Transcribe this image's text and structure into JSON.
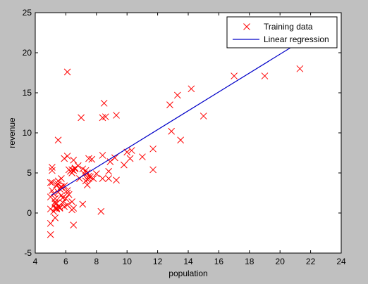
{
  "chart_data": {
    "type": "scatter",
    "title": "",
    "xlabel": "population",
    "ylabel": "revenue",
    "xlim": [
      4,
      24
    ],
    "ylim": [
      -5,
      25
    ],
    "xticks": [
      4,
      6,
      8,
      10,
      12,
      14,
      16,
      18,
      20,
      22,
      24
    ],
    "yticks": [
      -5,
      0,
      5,
      10,
      15,
      20,
      25
    ],
    "grid": false,
    "legend_position": "top-right",
    "series": [
      {
        "name": "Training data",
        "kind": "scatter",
        "marker": "x",
        "color": "#ff0000",
        "points": [
          [
            6.1,
            17.6
          ],
          [
            5.5,
            9.1
          ],
          [
            8.5,
            13.7
          ],
          [
            7.0,
            11.9
          ],
          [
            5.9,
            6.8
          ],
          [
            8.4,
            11.9
          ],
          [
            7.5,
            4.3
          ],
          [
            8.6,
            12.0
          ],
          [
            6.5,
            6.6
          ],
          [
            5.1,
            3.8
          ],
          [
            5.7,
            3.3
          ],
          [
            14.2,
            15.5
          ],
          [
            5.7,
            3.2
          ],
          [
            8.4,
            7.2
          ],
          [
            5.6,
            0.7
          ],
          [
            5.4,
            3.5
          ],
          [
            6.4,
            5.4
          ],
          [
            5.1,
            5.7
          ],
          [
            5.0,
            3.8
          ],
          [
            6.4,
            0.4
          ],
          [
            5.6,
            3.0
          ],
          [
            5.7,
            4.3
          ],
          [
            5.5,
            4.0
          ],
          [
            5.1,
            2.8
          ],
          [
            5.4,
            1.2
          ],
          [
            6.8,
            5.9
          ],
          [
            9.3,
            12.2
          ],
          [
            13.3,
            14.7
          ],
          [
            12.9,
            10.2
          ],
          [
            6.1,
            1.0
          ],
          [
            7.5,
            6.8
          ],
          [
            10.2,
            6.8
          ],
          [
            15.0,
            12.1
          ],
          [
            8.3,
            0.2
          ],
          [
            5.6,
            0.6
          ],
          [
            5.3,
            1.2
          ],
          [
            8.4,
            4.3
          ],
          [
            5.4,
            0.6
          ],
          [
            5.0,
            -2.7
          ],
          [
            6.5,
            5.3
          ],
          [
            7.5,
            4.6
          ],
          [
            7.3,
            5.3
          ],
          [
            9.2,
            6.9
          ],
          [
            5.4,
            0.5
          ],
          [
            6.6,
            5.6
          ],
          [
            10.3,
            7.8
          ],
          [
            5.3,
            -0.6
          ],
          [
            5.8,
            1.9
          ],
          [
            6.2,
            5.4
          ],
          [
            6.6,
            5.5
          ],
          [
            6.4,
            1.4
          ],
          [
            7.4,
            4.2
          ],
          [
            9.3,
            4.1
          ],
          [
            6.4,
            5.0
          ],
          [
            5.3,
            1.4
          ],
          [
            7.4,
            5.0
          ],
          [
            9.8,
            6.0
          ],
          [
            13.5,
            9.1
          ],
          [
            7.8,
            4.3
          ],
          [
            5.5,
            0.8
          ],
          [
            5.5,
            3.6
          ],
          [
            6.9,
            4.3
          ],
          [
            5.0,
            -1.3
          ],
          [
            5.9,
            3.4
          ],
          [
            5.1,
            5.3
          ],
          [
            6.1,
            2.8
          ],
          [
            7.7,
            6.7
          ],
          [
            5.8,
            1.3
          ],
          [
            6.5,
            0.6
          ],
          [
            5.7,
            2.2
          ],
          [
            7.4,
            3.5
          ],
          [
            6.3,
            5.2
          ],
          [
            6.0,
            1.8
          ],
          [
            6.1,
            2.5
          ],
          [
            7.1,
            5.5
          ],
          [
            6.5,
            -1.5
          ],
          [
            5.2,
            2.4
          ],
          [
            7.2,
            4.9
          ],
          [
            5.9,
            0.8
          ],
          [
            11.7,
            5.4
          ],
          [
            8.8,
            5.2
          ],
          [
            5.0,
            2.0
          ],
          [
            6.2,
            2.3
          ],
          [
            5.4,
            1.2
          ],
          [
            5.3,
            0.6
          ],
          [
            8.9,
            6.4
          ],
          [
            6.1,
            7.1
          ],
          [
            7.3,
            4.0
          ],
          [
            8.8,
            4.3
          ],
          [
            5.3,
            1.8
          ],
          [
            11.7,
            8.0
          ],
          [
            17.0,
            17.1
          ],
          [
            21.3,
            18.0
          ],
          [
            11.0,
            7.0
          ],
          [
            19.0,
            17.1
          ],
          [
            7.6,
            4.5
          ],
          [
            12.8,
            13.5
          ],
          [
            8.0,
            4.9
          ],
          [
            7.1,
            1.1
          ],
          [
            5.5,
            2.6
          ],
          [
            5.0,
            0.5
          ],
          [
            5.2,
            0.2
          ],
          [
            10.0,
            7.6
          ],
          [
            22.2,
            24.1
          ]
        ]
      },
      {
        "name": "Linear regression",
        "kind": "line",
        "color": "#0000c8",
        "points": [
          [
            5.03,
            2.2
          ],
          [
            22.2,
            22.4
          ]
        ]
      }
    ]
  }
}
